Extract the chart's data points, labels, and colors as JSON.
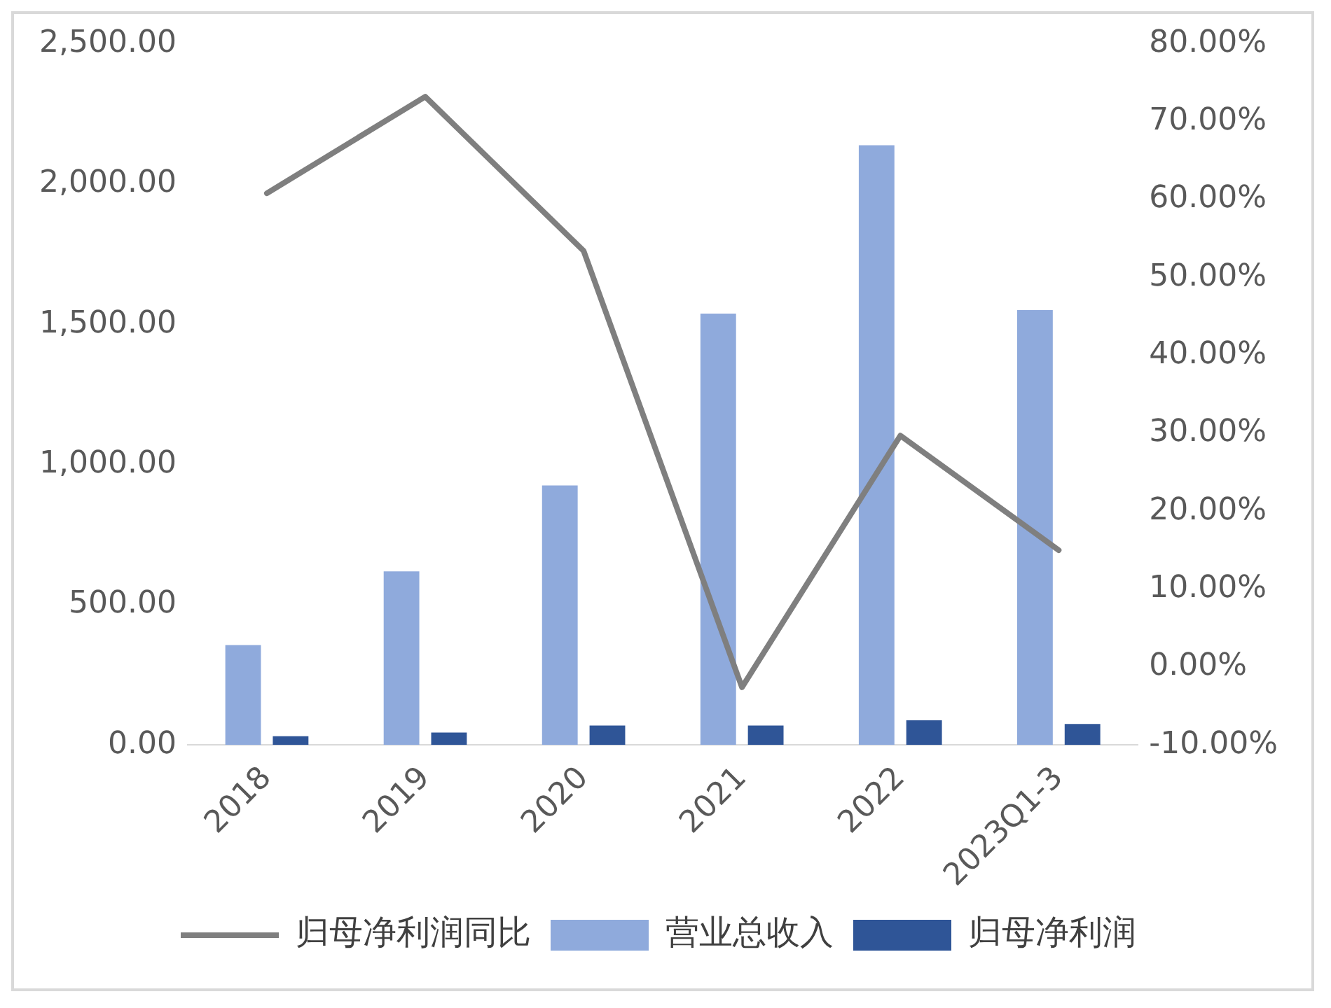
{
  "chart_data": {
    "type": "bar",
    "categories": [
      "2018",
      "2019",
      "2020",
      "2021",
      "2022",
      "2023Q1-3"
    ],
    "series": [
      {
        "name": "营业总收入",
        "color": "#8faadc",
        "values": [
          356,
          619,
          925,
          1538,
          2138,
          1550
        ]
      },
      {
        "name": "归母净利润",
        "color": "#2f5597",
        "values": [
          31,
          44,
          69,
          69,
          88,
          75
        ]
      },
      {
        "name": "归母净利润同比",
        "type": "line",
        "axis": "y2",
        "color": "#7f7f7f",
        "values": [
          60.8,
          73.2,
          53.4,
          -2.6,
          29.7,
          15
        ]
      }
    ],
    "ylim": [
      0,
      2500
    ],
    "yticks": [
      {
        "value": 0,
        "label": "0.00"
      },
      {
        "value": 500,
        "label": "500.00"
      },
      {
        "value": 1000,
        "label": "1,000.00"
      },
      {
        "value": 1500,
        "label": "1,500.00"
      },
      {
        "value": 2000,
        "label": "2,000.00"
      },
      {
        "value": 2500,
        "label": "2,500.00"
      }
    ],
    "y2lim": [
      -10,
      80
    ],
    "y2ticks": [
      {
        "value": -10,
        "label": "-10.00%"
      },
      {
        "value": 0,
        "label": "0.00%"
      },
      {
        "value": 10,
        "label": "10.00%"
      },
      {
        "value": 20,
        "label": "20.00%"
      },
      {
        "value": 30,
        "label": "30.00%"
      },
      {
        "value": 40,
        "label": "40.00%"
      },
      {
        "value": 50,
        "label": "50.00%"
      },
      {
        "value": 60,
        "label": "60.00%"
      },
      {
        "value": 70,
        "label": "70.00%"
      },
      {
        "value": 80,
        "label": "80.00%"
      }
    ],
    "grid": false,
    "legend": "bottom",
    "marker": "none",
    "line_style": "solid"
  }
}
